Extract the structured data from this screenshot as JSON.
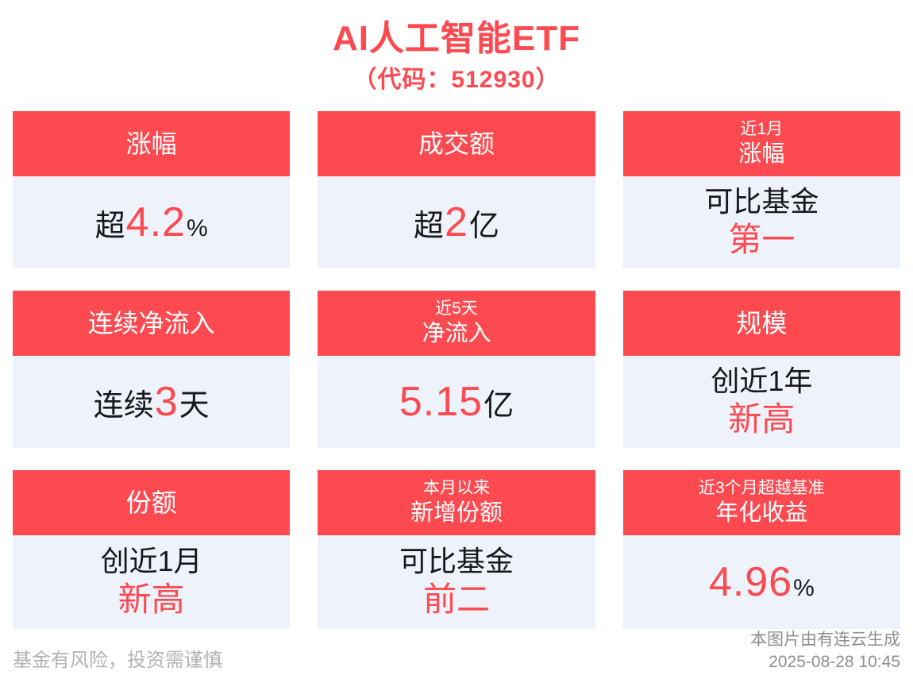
{
  "title": "AI人工智能ETF",
  "subtitle": "（代码：512930）",
  "colors": {
    "accent_red": "#FC4A50",
    "card_body_bg": "#EEF2FB",
    "dark_text": "#17181A",
    "footer_left_gray": "#B2B3B5",
    "footer_right_gray": "#8E8F91"
  },
  "cards": [
    {
      "header": {
        "main": "涨幅"
      },
      "body": {
        "prefix": "超",
        "value": "4.2",
        "suffix_pct": "%"
      }
    },
    {
      "header": {
        "main": "成交额"
      },
      "body": {
        "prefix": "超",
        "value": "2",
        "suffix": "亿"
      }
    },
    {
      "header": {
        "small": "近1月",
        "main": "涨幅"
      },
      "body": {
        "line1": "可比基金",
        "line2": "第一"
      }
    },
    {
      "header": {
        "main": "连续净流入"
      },
      "body": {
        "prefix": "连续",
        "value": "3",
        "suffix": "天"
      }
    },
    {
      "header": {
        "small": "近5天",
        "main": "净流入"
      },
      "body": {
        "value": "5.15",
        "suffix": "亿"
      }
    },
    {
      "header": {
        "main": "规模"
      },
      "body": {
        "line1": "创近1年",
        "line2": "新高"
      }
    },
    {
      "header": {
        "main": "份额"
      },
      "body": {
        "line1": "创近1月",
        "line2": "新高"
      }
    },
    {
      "header": {
        "small": "本月以来",
        "main": "新增份额"
      },
      "body": {
        "line1": "可比基金",
        "line2": "前二"
      }
    },
    {
      "header": {
        "small": "近3个月超越基准",
        "main": "年化收益"
      },
      "body": {
        "value": "4.96",
        "suffix_pct": "%"
      }
    }
  ],
  "footer": {
    "left": "基金有风险，投资需谨慎",
    "right_line1": "本图片由有连云生成",
    "right_line2": "2025-08-28 10:45"
  }
}
